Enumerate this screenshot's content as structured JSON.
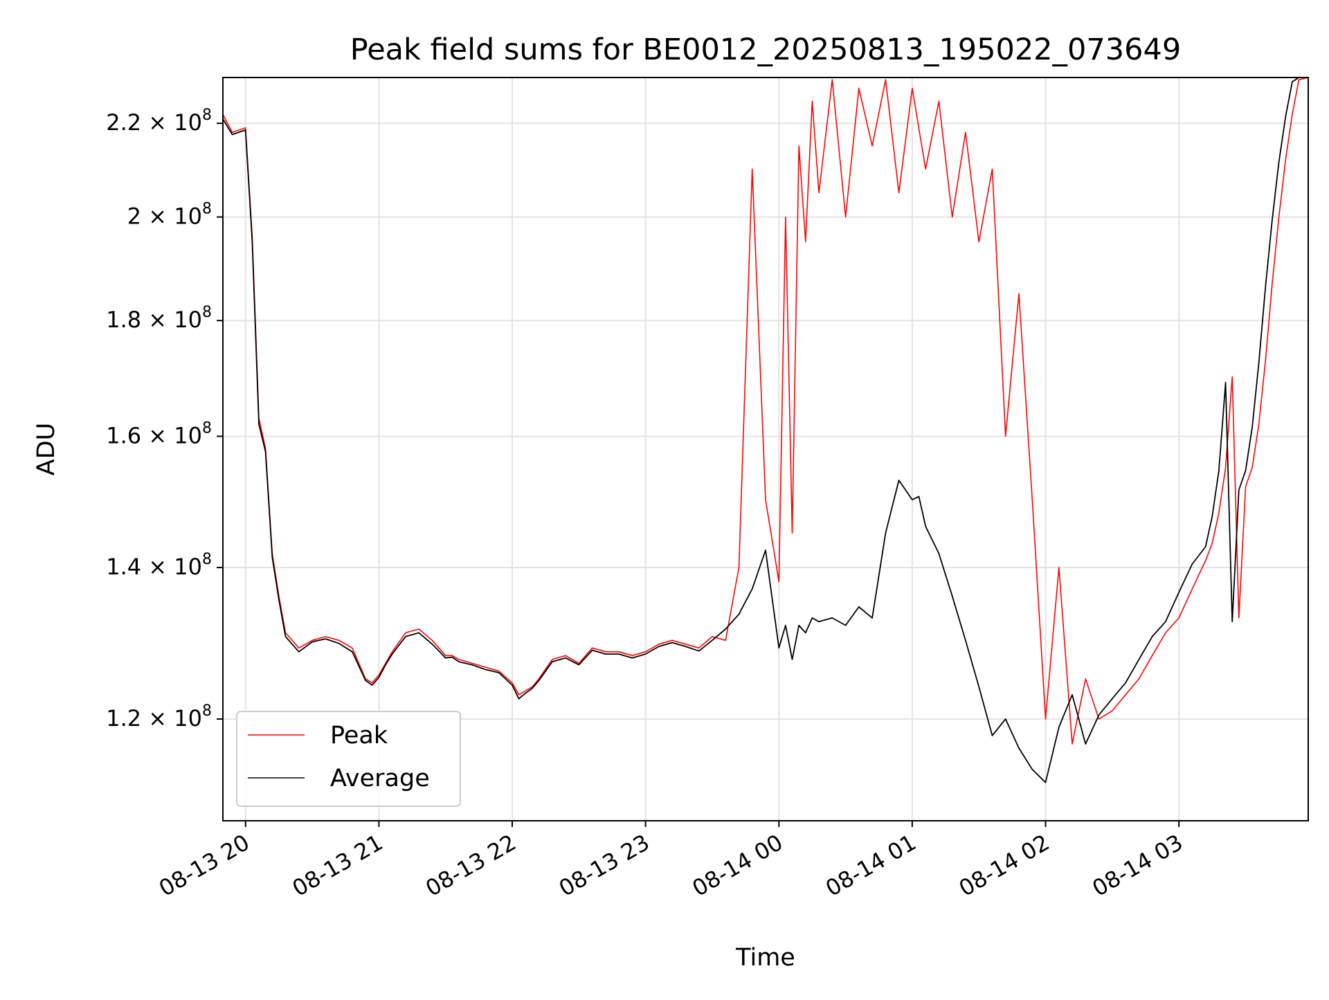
{
  "chart_data": {
    "type": "line",
    "title": "Peak field sums for BE0012_20250813_195022_073649",
    "xlabel": "Time",
    "ylabel": "ADU",
    "x_ticks": [
      "08-13 20",
      "08-13 21",
      "08-13 22",
      "08-13 23",
      "08-14 00",
      "08-14 01",
      "08-14 02",
      "08-14 03"
    ],
    "y_ticks": [
      {
        "value": 120000000,
        "mantissa": "1.2",
        "exp": "8"
      },
      {
        "value": 140000000,
        "mantissa": "1.4",
        "exp": "8"
      },
      {
        "value": 160000000,
        "mantissa": "1.6",
        "exp": "8"
      },
      {
        "value": 180000000,
        "mantissa": "1.8",
        "exp": "8"
      },
      {
        "value": 200000000,
        "mantissa": "2",
        "exp": "8"
      },
      {
        "value": 220000000,
        "mantissa": "2.2",
        "exp": "8"
      }
    ],
    "xlim": [
      19.83,
      27.97
    ],
    "ylim": [
      108200000,
      230500000
    ],
    "log_scale_y": true,
    "grid": true,
    "legend_position": "lower-left",
    "series": [
      {
        "name": "Peak",
        "color": "#ff0000",
        "x": [
          19.83,
          19.9,
          20.0,
          20.05,
          20.1,
          20.15,
          20.2,
          20.25,
          20.3,
          20.4,
          20.5,
          20.6,
          20.7,
          20.8,
          20.9,
          20.95,
          21.0,
          21.05,
          21.1,
          21.2,
          21.3,
          21.4,
          21.5,
          21.55,
          21.6,
          21.7,
          21.8,
          21.9,
          22.0,
          22.05,
          22.1,
          22.15,
          22.2,
          22.3,
          22.4,
          22.5,
          22.6,
          22.7,
          22.8,
          22.9,
          23.0,
          23.1,
          23.2,
          23.3,
          23.4,
          23.5,
          23.6,
          23.7,
          23.8,
          23.9,
          24.0,
          24.05,
          24.1,
          24.15,
          24.2,
          24.25,
          24.3,
          24.4,
          24.5,
          24.6,
          24.7,
          24.8,
          24.9,
          25.0,
          25.1,
          25.2,
          25.3,
          25.4,
          25.5,
          25.6,
          25.7,
          25.8,
          25.9,
          26.0,
          26.1,
          26.2,
          26.3,
          26.4,
          26.5,
          26.6,
          26.7,
          26.8,
          26.9,
          27.0,
          27.1,
          27.2,
          27.25,
          27.3,
          27.35,
          27.4,
          27.45,
          27.5,
          27.55,
          27.6,
          27.65,
          27.7,
          27.75,
          27.8,
          27.85,
          27.9,
          27.97
        ],
        "values": [
          222000000,
          218000000,
          219000000,
          196000000,
          163000000,
          158000000,
          142000000,
          136000000,
          131000000,
          129000000,
          130000000,
          130500000,
          130000000,
          129000000,
          125000000,
          124500000,
          125500000,
          127000000,
          128500000,
          131000000,
          131500000,
          130000000,
          128000000,
          128000000,
          127500000,
          127000000,
          126500000,
          126000000,
          124500000,
          123000000,
          123500000,
          124000000,
          125000000,
          127500000,
          128000000,
          127000000,
          129000000,
          128500000,
          128500000,
          128000000,
          128500000,
          129500000,
          130000000,
          129500000,
          129000000,
          130500000,
          130000000,
          140000000,
          210000000,
          150000000,
          138000000,
          200000000,
          145000000,
          215000000,
          195000000,
          225000000,
          205000000,
          230000000,
          200000000,
          228000000,
          215000000,
          230000000,
          205000000,
          228000000,
          210000000,
          225000000,
          200000000,
          218000000,
          195000000,
          210000000,
          160000000,
          185000000,
          150000000,
          120000000,
          140000000,
          117000000,
          125000000,
          120000000,
          121000000,
          123000000,
          125000000,
          128000000,
          131000000,
          133000000,
          137000000,
          141000000,
          143500000,
          148000000,
          155000000,
          170000000,
          133000000,
          152000000,
          155000000,
          162000000,
          173000000,
          187000000,
          200000000,
          212000000,
          222000000,
          230000000,
          230500000
        ]
      },
      {
        "name": "Average",
        "color": "#000000",
        "x": [
          19.83,
          19.9,
          20.0,
          20.05,
          20.1,
          20.15,
          20.2,
          20.25,
          20.3,
          20.4,
          20.5,
          20.6,
          20.7,
          20.8,
          20.9,
          20.95,
          21.0,
          21.05,
          21.1,
          21.2,
          21.3,
          21.4,
          21.5,
          21.55,
          21.6,
          21.7,
          21.8,
          21.9,
          22.0,
          22.05,
          22.1,
          22.15,
          22.2,
          22.3,
          22.4,
          22.5,
          22.6,
          22.7,
          22.8,
          22.9,
          23.0,
          23.1,
          23.2,
          23.3,
          23.4,
          23.5,
          23.6,
          23.7,
          23.8,
          23.9,
          24.0,
          24.05,
          24.1,
          24.15,
          24.2,
          24.25,
          24.3,
          24.4,
          24.5,
          24.6,
          24.7,
          24.8,
          24.9,
          25.0,
          25.05,
          25.1,
          25.2,
          25.3,
          25.4,
          25.5,
          25.6,
          25.7,
          25.8,
          25.9,
          26.0,
          26.1,
          26.2,
          26.3,
          26.4,
          26.5,
          26.6,
          26.7,
          26.8,
          26.9,
          27.0,
          27.1,
          27.2,
          27.25,
          27.3,
          27.35,
          27.4,
          27.45,
          27.5,
          27.55,
          27.6,
          27.65,
          27.7,
          27.75,
          27.8,
          27.85,
          27.9,
          27.97
        ],
        "values": [
          221000000,
          217500000,
          218500000,
          195000000,
          162000000,
          157500000,
          141500000,
          135500000,
          130500000,
          128500000,
          129800000,
          130200000,
          129600000,
          128500000,
          124800000,
          124200000,
          125200000,
          126800000,
          128200000,
          130500000,
          131000000,
          129500000,
          127700000,
          127800000,
          127200000,
          126800000,
          126200000,
          125800000,
          124200000,
          122500000,
          123200000,
          123800000,
          124800000,
          127200000,
          127700000,
          126800000,
          128700000,
          128200000,
          128200000,
          127700000,
          128200000,
          129200000,
          129700000,
          129200000,
          128600000,
          130000000,
          131500000,
          133500000,
          137000000,
          142500000,
          129000000,
          132000000,
          127500000,
          132000000,
          131000000,
          133000000,
          132500000,
          133000000,
          132000000,
          134500000,
          133000000,
          145000000,
          153000000,
          150000000,
          150500000,
          146000000,
          142000000,
          136000000,
          130000000,
          124000000,
          118000000,
          120000000,
          116500000,
          114000000,
          112500000,
          119000000,
          123000000,
          117000000,
          120500000,
          122500000,
          124500000,
          127500000,
          130500000,
          132500000,
          136500000,
          140500000,
          143000000,
          147500000,
          154500000,
          169000000,
          132500000,
          151500000,
          154500000,
          161500000,
          172500000,
          186500000,
          199500000,
          211500000,
          221500000,
          229500000,
          230500000,
          230500000
        ]
      }
    ]
  },
  "legend": {
    "items": [
      {
        "label": "Peak",
        "color": "#ff0000"
      },
      {
        "label": "Average",
        "color": "#000000"
      }
    ]
  }
}
